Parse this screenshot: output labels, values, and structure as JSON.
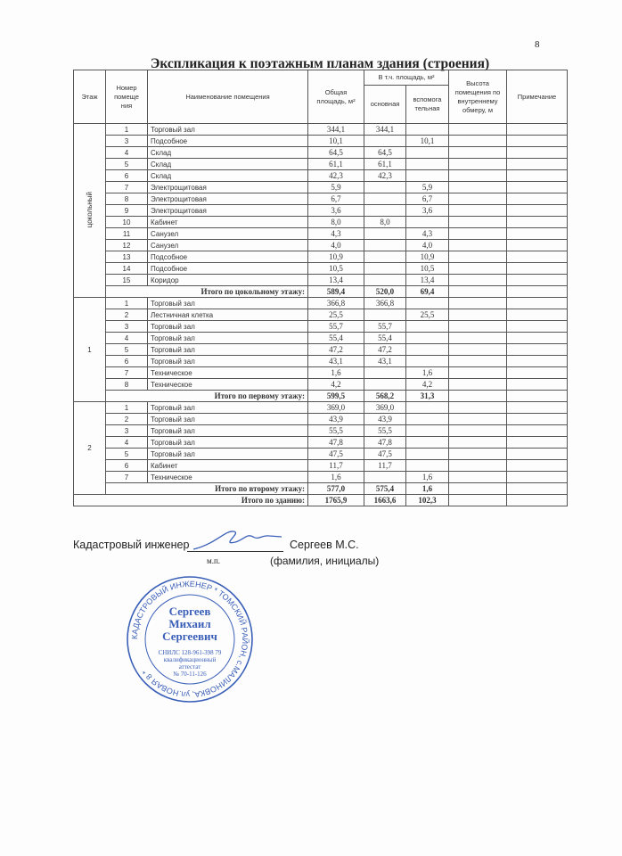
{
  "page_number": "8",
  "title": "Экспликация к поэтажным планам здания (строения)",
  "headers": {
    "floor": "Этаж",
    "number": "Номер помеще ния",
    "name": "Наименование помещения",
    "total_area": "Общая площадь, м²",
    "incl_area": "В т.ч. площадь, м²",
    "main": "основная",
    "aux": "вспомога тельная",
    "height": "Высота помещения по внутреннему обмеру, м",
    "note": "Примечание"
  },
  "floors": [
    {
      "floor": "цокольный",
      "vertical": true,
      "rooms": [
        [
          "1",
          "Торговый зал",
          "344,1",
          "344,1",
          ""
        ],
        [
          "3",
          "Подсобное",
          "10,1",
          "",
          "10,1"
        ],
        [
          "4",
          "Склад",
          "64,5",
          "64,5",
          ""
        ],
        [
          "5",
          "Склад",
          "61,1",
          "61,1",
          ""
        ],
        [
          "6",
          "Склад",
          "42,3",
          "42,3",
          ""
        ],
        [
          "7",
          "Электрощитовая",
          "5,9",
          "",
          "5,9"
        ],
        [
          "8",
          "Электрощитовая",
          "6,7",
          "",
          "6,7"
        ],
        [
          "9",
          "Электрощитовая",
          "3,6",
          "",
          "3,6"
        ],
        [
          "10",
          "Кабинет",
          "8,0",
          "8,0",
          ""
        ],
        [
          "11",
          "Санузел",
          "4,3",
          "",
          "4,3"
        ],
        [
          "12",
          "Санузел",
          "4,0",
          "",
          "4,0"
        ],
        [
          "13",
          "Подсобное",
          "10,9",
          "",
          "10,9"
        ],
        [
          "14",
          "Подсобное",
          "10,5",
          "",
          "10,5"
        ],
        [
          "15",
          "Коридор",
          "13,4",
          "",
          "13,4"
        ]
      ],
      "total": {
        "label": "Итого по цокольному этажу:",
        "total": "589,4",
        "main": "520,0",
        "aux": "69,4"
      }
    },
    {
      "floor": "1",
      "vertical": false,
      "rooms": [
        [
          "1",
          "Торговый зал",
          "366,8",
          "366,8",
          ""
        ],
        [
          "2",
          "Лестничная клетка",
          "25,5",
          "",
          "25,5"
        ],
        [
          "3",
          "Торговый зал",
          "55,7",
          "55,7",
          ""
        ],
        [
          "4",
          "Торговый зал",
          "55,4",
          "55,4",
          ""
        ],
        [
          "5",
          "Торговый зал",
          "47,2",
          "47,2",
          ""
        ],
        [
          "6",
          "Торговый зал",
          "43,1",
          "43,1",
          ""
        ],
        [
          "7",
          "Техническое",
          "1,6",
          "",
          "1,6"
        ],
        [
          "8",
          "Техническое",
          "4,2",
          "",
          "4,2"
        ]
      ],
      "total": {
        "label": "Итого по первому этажу:",
        "total": "599,5",
        "main": "568,2",
        "aux": "31,3"
      }
    },
    {
      "floor": "2",
      "vertical": false,
      "rooms": [
        [
          "1",
          "Торговый зал",
          "369,0",
          "369,0",
          ""
        ],
        [
          "2",
          "Торговый зал",
          "43,9",
          "43,9",
          ""
        ],
        [
          "3",
          "Торговый зал",
          "55,5",
          "55,5",
          ""
        ],
        [
          "4",
          "Торговый зал",
          "47,8",
          "47,8",
          ""
        ],
        [
          "5",
          "Торговый зал",
          "47,5",
          "47,5",
          ""
        ],
        [
          "6",
          "Кабинет",
          "11,7",
          "11,7",
          ""
        ],
        [
          "7",
          "Техническое",
          "1,6",
          "",
          "1,6"
        ]
      ],
      "total": {
        "label": "Итого по второму этажу:",
        "total": "577,0",
        "main": "575,4",
        "aux": "1,6"
      }
    }
  ],
  "building_total": {
    "label": "Итого по зданию:",
    "total": "1765,9",
    "main": "1663,6",
    "aux": "102,3"
  },
  "signature": {
    "role": "Кадастровый инженер",
    "name": "Сергеев М.С.",
    "caption": "(фамилия, инициалы)",
    "mp": "м.п."
  },
  "stamp": {
    "ring": "КАДАСТРОВЫЙ ИНЖЕНЕР * ТОМСКИЙ РАЙОН, с.МАЛИНОВКА, ул.НОВАЯ 8 *",
    "name_lines": [
      "Сергеев",
      "Михаил",
      "Сергеевич"
    ],
    "details": [
      "СНИЛС 128-961-398 79",
      "квалификационный",
      "аттестат",
      "№ 70-11-126"
    ],
    "color": "#3a5fb8"
  }
}
